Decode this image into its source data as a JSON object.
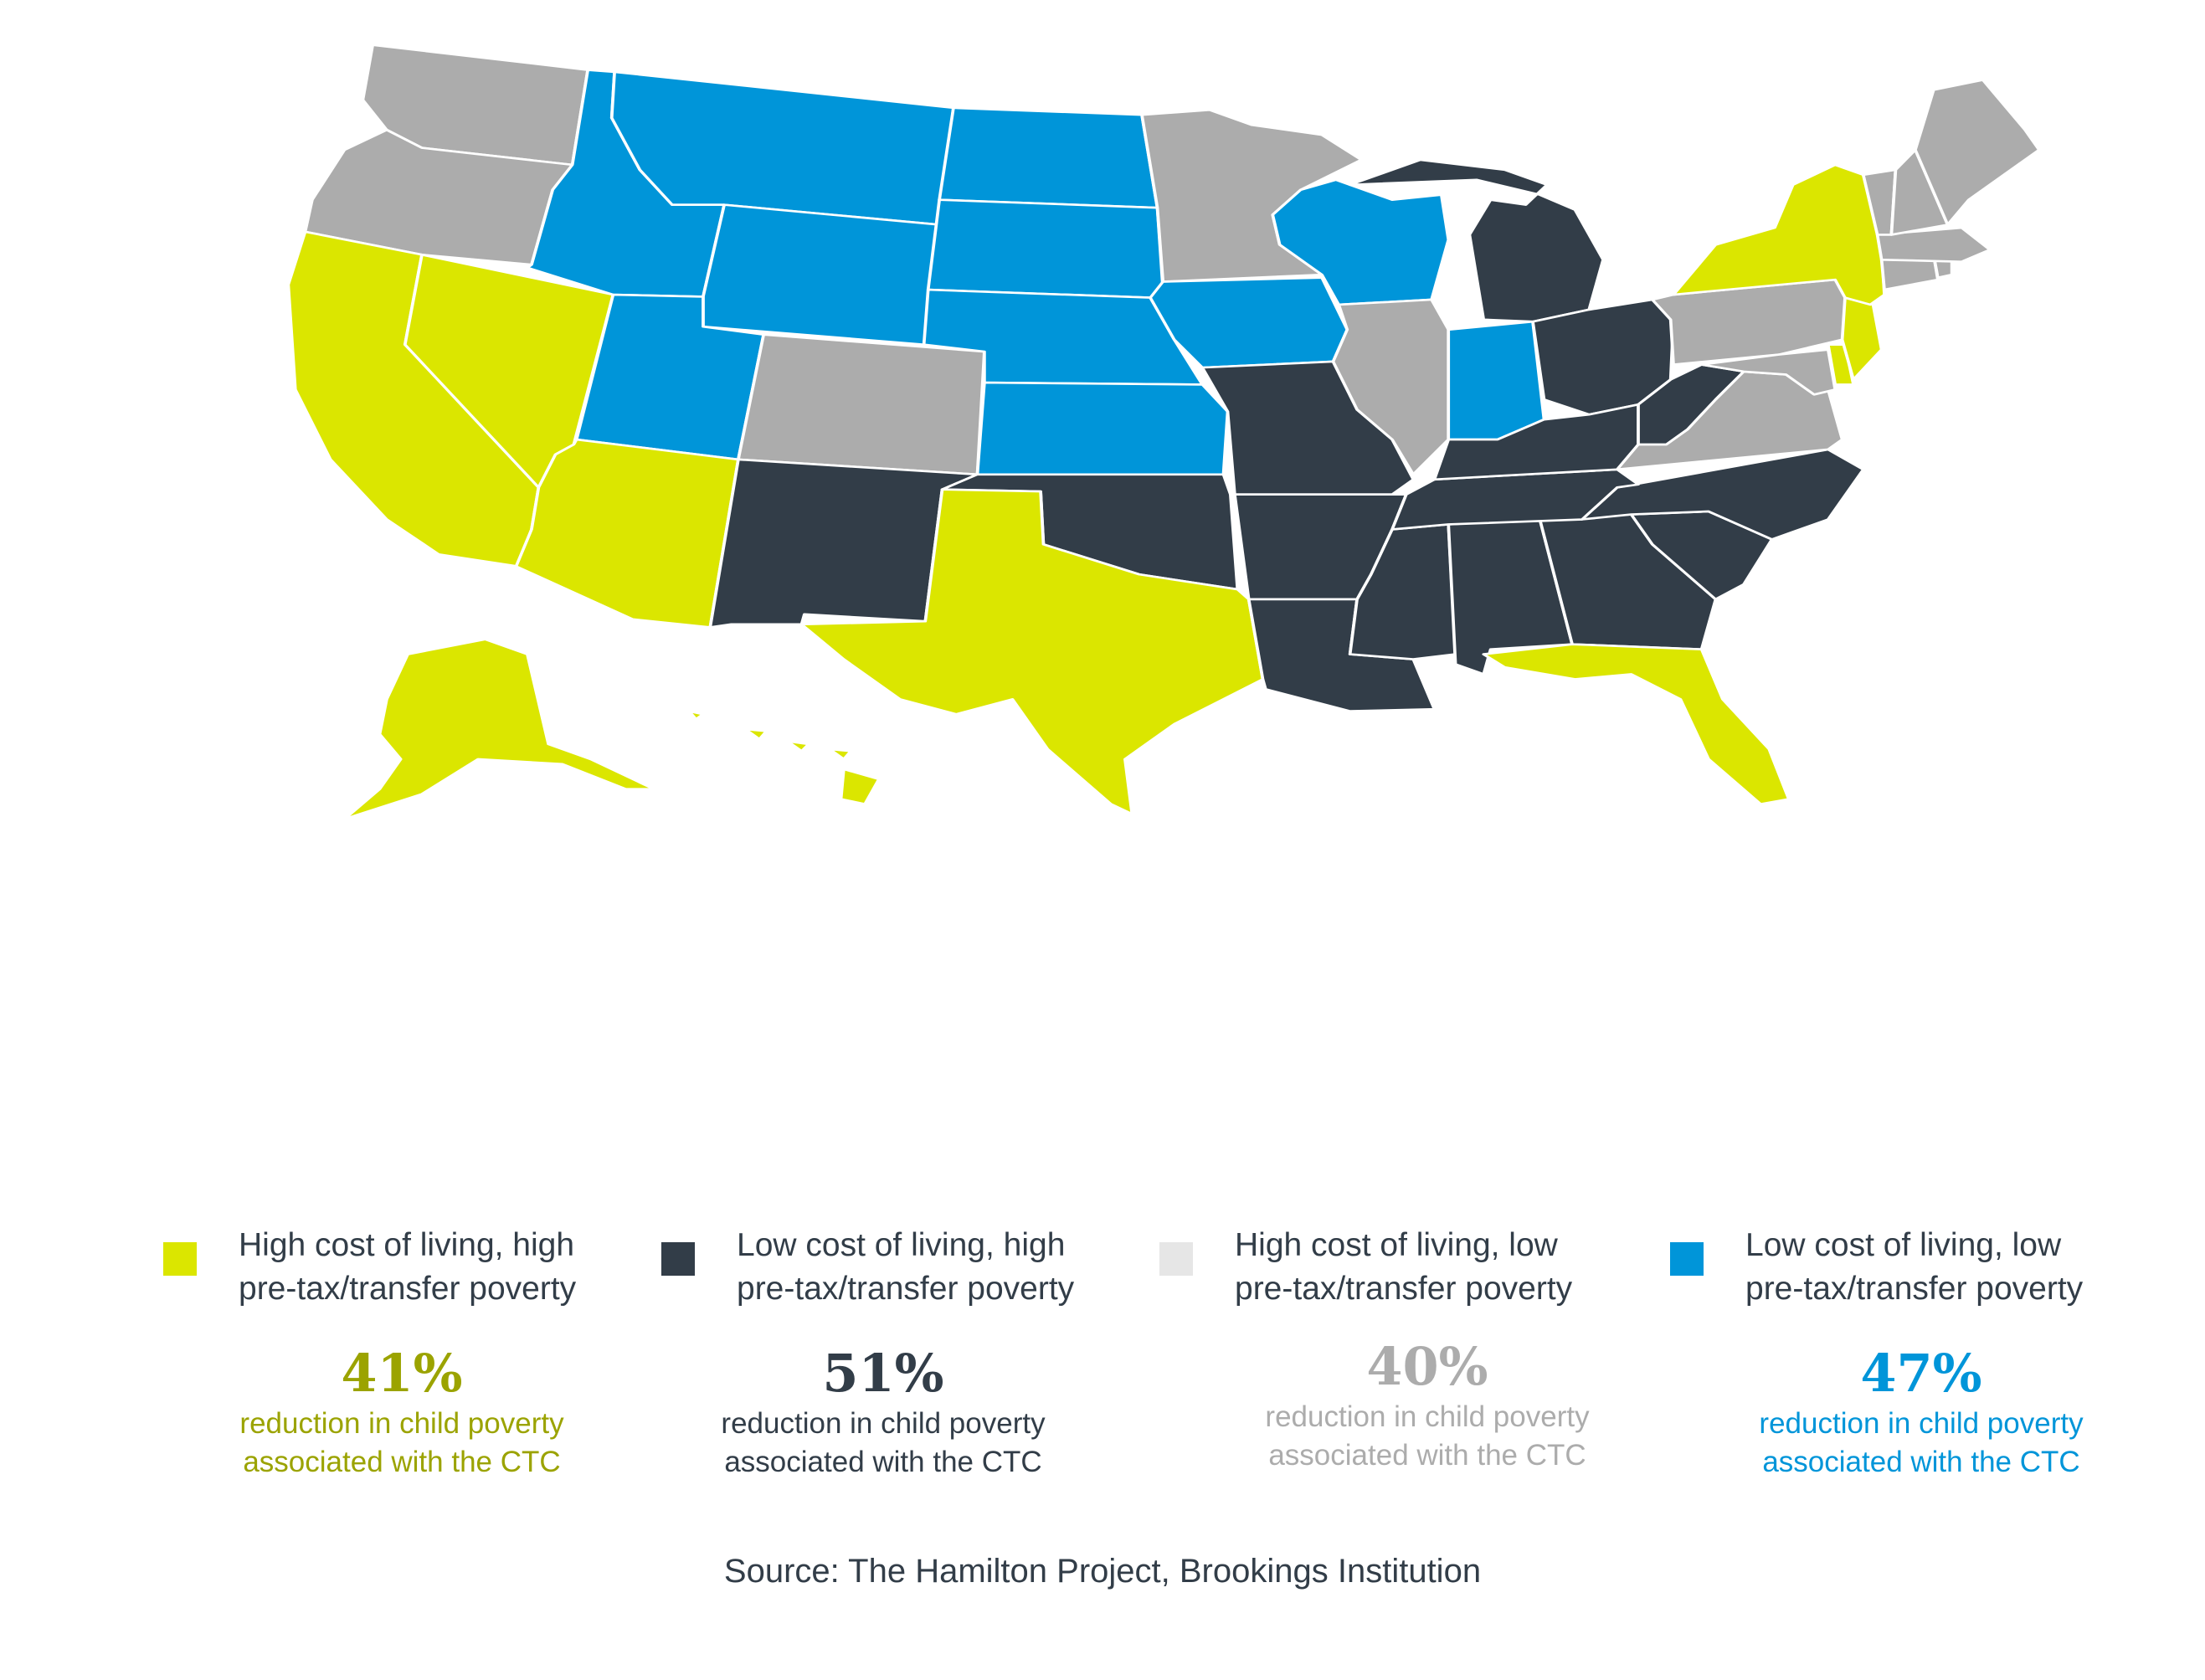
{
  "colors": {
    "high_cost_high_poverty": "#dbe600",
    "low_cost_high_poverty": "#323d48",
    "high_cost_low_poverty": "#acacac",
    "low_cost_low_poverty": "#0095d9",
    "legend_swatch_high_cost_low_poverty": "#e6e6e6",
    "stat_high_cost_high_poverty": "#9ba300",
    "stat_low_cost_high_poverty": "#323d48",
    "stat_high_cost_low_poverty": "#acacac",
    "stat_low_cost_low_poverty": "#0095d9"
  },
  "map": {
    "region": "United States",
    "states": {
      "CA": "high_cost_high_poverty",
      "NV": "high_cost_high_poverty",
      "AZ": "high_cost_high_poverty",
      "TX": "high_cost_high_poverty",
      "FL": "high_cost_high_poverty",
      "NY": "high_cost_high_poverty",
      "NJ": "high_cost_high_poverty",
      "DE": "high_cost_high_poverty",
      "AK": "high_cost_high_poverty",
      "HI": "high_cost_high_poverty",
      "NM": "low_cost_high_poverty",
      "OK": "low_cost_high_poverty",
      "MO": "low_cost_high_poverty",
      "AR": "low_cost_high_poverty",
      "LA": "low_cost_high_poverty",
      "MS": "low_cost_high_poverty",
      "AL": "low_cost_high_poverty",
      "GA": "low_cost_high_poverty",
      "SC": "low_cost_high_poverty",
      "NC": "low_cost_high_poverty",
      "TN": "low_cost_high_poverty",
      "KY": "low_cost_high_poverty",
      "WV": "low_cost_high_poverty",
      "OH": "low_cost_high_poverty",
      "MI": "low_cost_high_poverty",
      "WA": "high_cost_low_poverty",
      "OR": "high_cost_low_poverty",
      "CO": "high_cost_low_poverty",
      "MN": "high_cost_low_poverty",
      "IL": "high_cost_low_poverty",
      "PA": "high_cost_low_poverty",
      "VA": "high_cost_low_poverty",
      "MD": "high_cost_low_poverty",
      "ME": "high_cost_low_poverty",
      "VT": "high_cost_low_poverty",
      "NH": "high_cost_low_poverty",
      "MA": "high_cost_low_poverty",
      "CT": "high_cost_low_poverty",
      "RI": "high_cost_low_poverty",
      "ID": "low_cost_low_poverty",
      "MT": "low_cost_low_poverty",
      "WY": "low_cost_low_poverty",
      "ND": "low_cost_low_poverty",
      "SD": "low_cost_low_poverty",
      "NE": "low_cost_low_poverty",
      "KS": "low_cost_low_poverty",
      "UT": "low_cost_low_poverty",
      "IA": "low_cost_low_poverty",
      "WI": "low_cost_low_poverty",
      "IN": "low_cost_low_poverty"
    }
  },
  "legend": [
    {
      "key": "high_cost_high_poverty",
      "label_line1": "High cost of living, high",
      "label_line2": "pre-tax/transfer poverty",
      "stat_value": "41%",
      "stat_line1": "reduction in child poverty",
      "stat_line2": "associated with the CTC"
    },
    {
      "key": "low_cost_high_poverty",
      "label_line1": "Low cost of living, high",
      "label_line2": "pre-tax/transfer poverty",
      "stat_value": "51%",
      "stat_line1": "reduction in child poverty",
      "stat_line2": "associated with the CTC"
    },
    {
      "key": "high_cost_low_poverty",
      "label_line1": "High cost of living, low",
      "label_line2": "pre-tax/transfer poverty",
      "stat_value": "40%",
      "stat_line1": "reduction in child poverty",
      "stat_line2": "associated with the CTC"
    },
    {
      "key": "low_cost_low_poverty",
      "label_line1": "Low cost of living, low",
      "label_line2": "pre-tax/transfer poverty",
      "stat_value": "47%",
      "stat_line1": "reduction in child poverty",
      "stat_line2": "associated with the CTC"
    }
  ],
  "source": "Source: The Hamilton Project, Brookings Institution"
}
